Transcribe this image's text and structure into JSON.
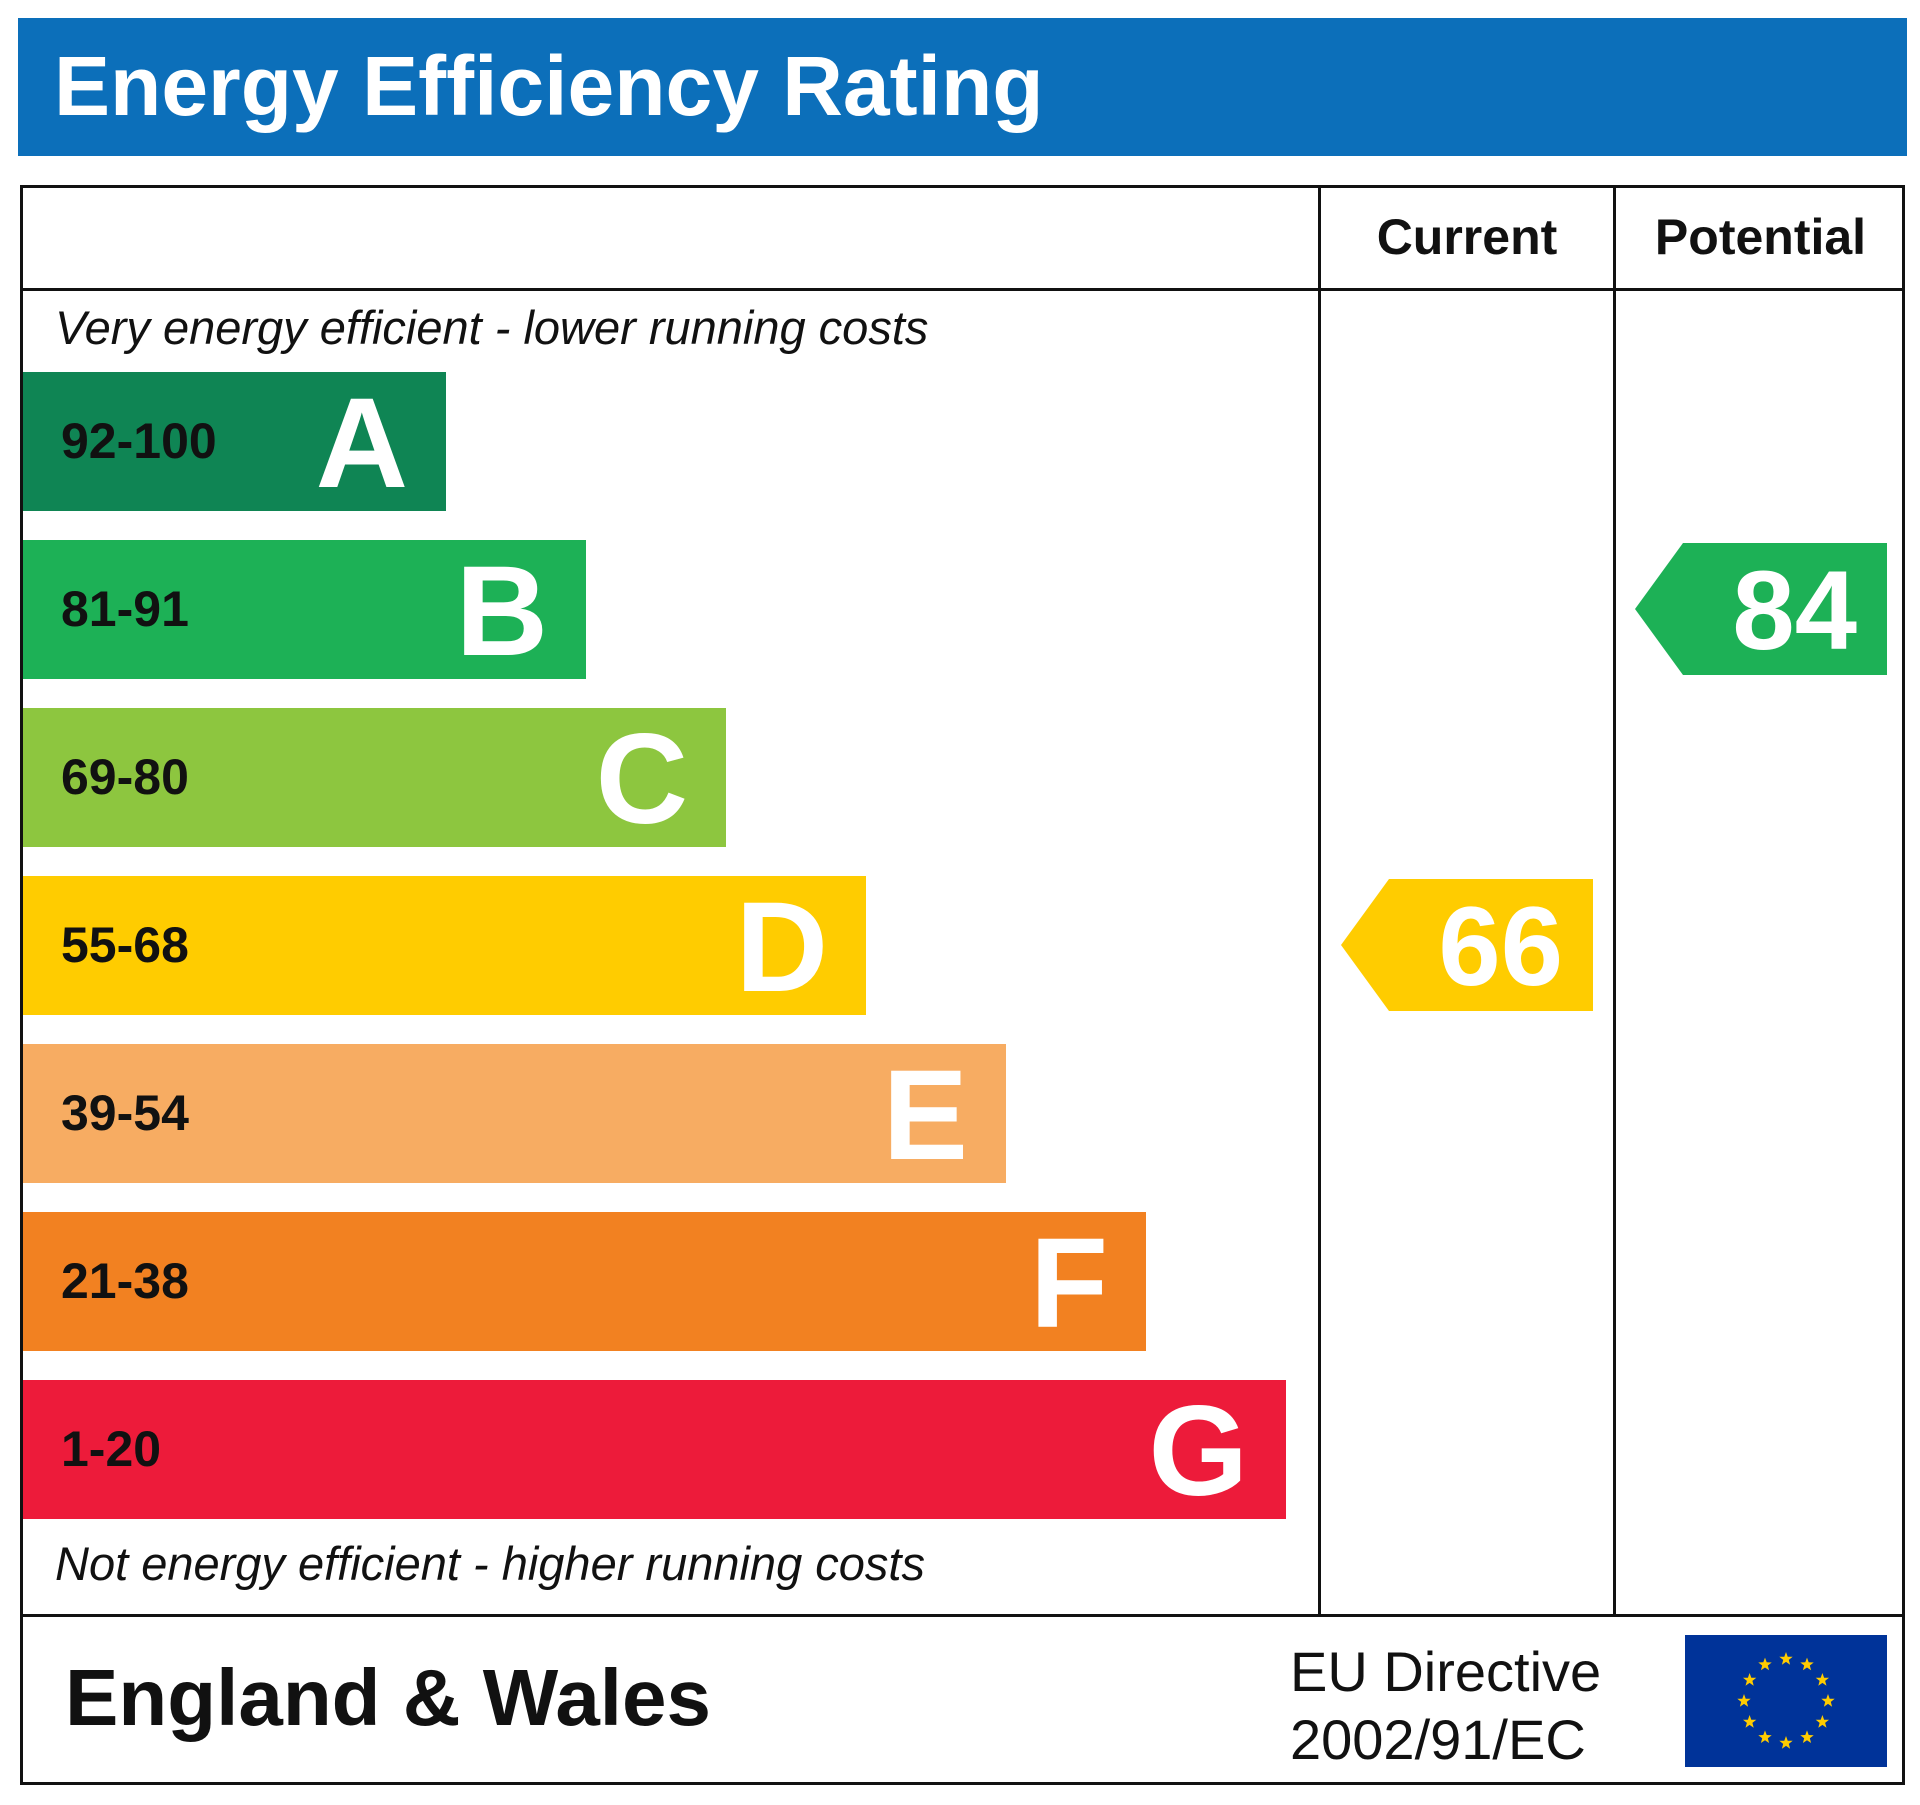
{
  "title": "Energy Efficiency Rating",
  "columns": {
    "current": "Current",
    "potential": "Potential"
  },
  "top_note": "Very energy efficient - lower running costs",
  "bottom_note": "Not energy efficient - higher running costs",
  "footer": {
    "region": "England & Wales",
    "directive_line1": "EU Directive",
    "directive_line2": "2002/91/EC",
    "flag_icon": "eu-flag-icon"
  },
  "chart_data": {
    "type": "bar",
    "title": "Energy Efficiency Rating",
    "categories": [
      "A",
      "B",
      "C",
      "D",
      "E",
      "F",
      "G"
    ],
    "ranges": [
      "92-100",
      "81-91",
      "69-80",
      "55-68",
      "39-54",
      "21-38",
      "1-20"
    ],
    "colors": [
      "#0F8554",
      "#1DB156",
      "#8DC63F",
      "#FFCC00",
      "#F7AC62",
      "#F28121",
      "#ED1B3A"
    ],
    "current": {
      "value": 66,
      "band": "D",
      "color": "#FFCC00"
    },
    "potential": {
      "value": 84,
      "band": "B",
      "color": "#1DB156"
    }
  }
}
